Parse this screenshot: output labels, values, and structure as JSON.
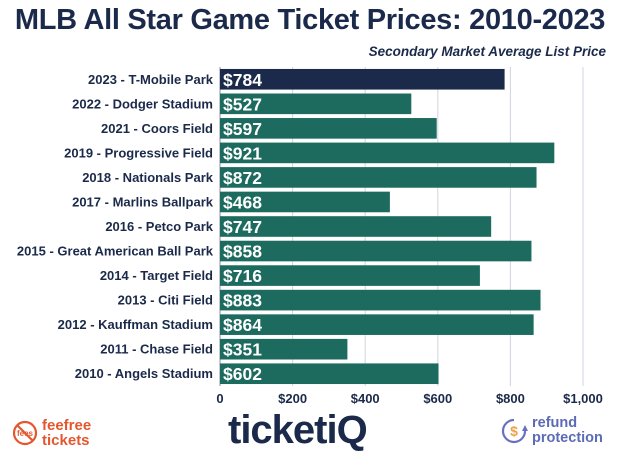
{
  "header": {
    "title": "MLB All Star Game Ticket Prices: 2010-2023",
    "subtitle": "Secondary Market Average List Price"
  },
  "colors": {
    "highlight_bar": "#1b2a4a",
    "bar": "#1d6b5f",
    "grid": "#cfd4dc",
    "text": "#1b2a4a",
    "feefree_accent": "#e4572e",
    "refund_accent": "#6a6fc0",
    "refund_dollar": "#f0a04b"
  },
  "chart_data": {
    "type": "bar",
    "orientation": "horizontal",
    "categories": [
      "2023 - T-Mobile Park",
      "2022 - Dodger Stadium",
      "2021 - Coors Field",
      "2019 - Progressive Field",
      "2018 - Nationals Park",
      "2017 - Marlins Ballpark",
      "2016 - Petco Park",
      "2015 - Great American Ball Park",
      "2014 - Target Field",
      "2013 - Citi Field",
      "2012 - Kauffman Stadium",
      "2011 - Chase Field",
      "2010 - Angels Stadium"
    ],
    "values": [
      784,
      527,
      597,
      921,
      872,
      468,
      747,
      858,
      716,
      883,
      864,
      351,
      602
    ],
    "data_labels": [
      "$784",
      "$527",
      "$597",
      "$921",
      "$872",
      "$468",
      "$747",
      "$858",
      "$716",
      "$883",
      "$864",
      "$351",
      "$602"
    ],
    "highlight_index": 0,
    "x_ticks": [
      0,
      200,
      400,
      600,
      800,
      1000
    ],
    "x_tick_labels": [
      "0",
      "$200",
      "$400",
      "$600",
      "$800",
      "$1,000"
    ],
    "xlim": [
      0,
      1000
    ],
    "grid": true,
    "legend": "none"
  },
  "footer": {
    "feefree_line1": "feefree",
    "feefree_line2": "tickets",
    "feefree_icon_text": "fees",
    "ticketiq_main": "ticket",
    "ticketiq_iq": "iQ",
    "refund_line1": "refund",
    "refund_line2": "protection",
    "refund_icon_text": "$"
  }
}
